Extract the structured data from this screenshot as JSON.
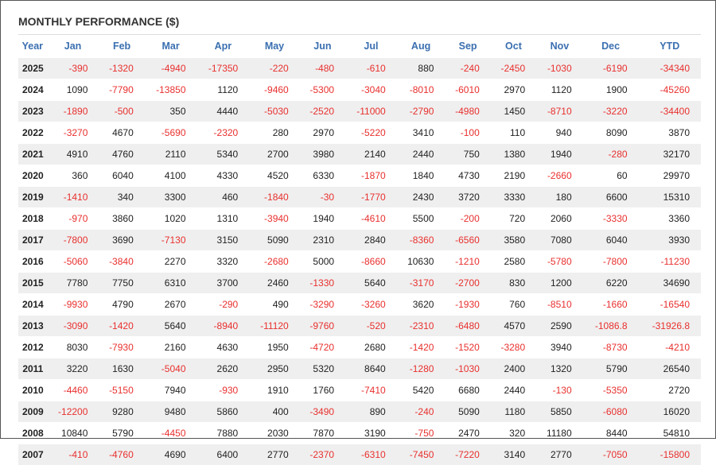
{
  "header": {
    "title": "MONTHLY PERFORMANCE ($)"
  },
  "table": {
    "columns": [
      "Year",
      "Jan",
      "Feb",
      "Mar",
      "Apr",
      "May",
      "Jun",
      "Jul",
      "Aug",
      "Sep",
      "Oct",
      "Nov",
      "Dec",
      "YTD"
    ],
    "rows": [
      [
        "2025",
        "-390",
        "-1320",
        "-4940",
        "-17350",
        "-220",
        "-480",
        "-610",
        "880",
        "-240",
        "-2450",
        "-1030",
        "-6190",
        "-34340"
      ],
      [
        "2024",
        "1090",
        "-7790",
        "-13850",
        "1120",
        "-9460",
        "-5300",
        "-3040",
        "-8010",
        "-6010",
        "2970",
        "1120",
        "1900",
        "-45260"
      ],
      [
        "2023",
        "-1890",
        "-500",
        "350",
        "4440",
        "-5030",
        "-2520",
        "-11000",
        "-2790",
        "-4980",
        "1450",
        "-8710",
        "-3220",
        "-34400"
      ],
      [
        "2022",
        "-3270",
        "4670",
        "-5690",
        "-2320",
        "280",
        "2970",
        "-5220",
        "3410",
        "-100",
        "110",
        "940",
        "8090",
        "3870"
      ],
      [
        "2021",
        "4910",
        "4760",
        "2110",
        "5340",
        "2700",
        "3980",
        "2140",
        "2440",
        "750",
        "1380",
        "1940",
        "-280",
        "32170"
      ],
      [
        "2020",
        "360",
        "6040",
        "4100",
        "4330",
        "4520",
        "6330",
        "-1870",
        "1840",
        "4730",
        "2190",
        "-2660",
        "60",
        "29970"
      ],
      [
        "2019",
        "-1410",
        "340",
        "3300",
        "460",
        "-1840",
        "-30",
        "-1770",
        "2430",
        "3720",
        "3330",
        "180",
        "6600",
        "15310"
      ],
      [
        "2018",
        "-970",
        "3860",
        "1020",
        "1310",
        "-3940",
        "1940",
        "-4610",
        "5500",
        "-200",
        "720",
        "2060",
        "-3330",
        "3360"
      ],
      [
        "2017",
        "-7800",
        "3690",
        "-7130",
        "3150",
        "5090",
        "2310",
        "2840",
        "-8360",
        "-6560",
        "3580",
        "7080",
        "6040",
        "3930"
      ],
      [
        "2016",
        "-5060",
        "-3840",
        "2270",
        "3320",
        "-2680",
        "5000",
        "-8660",
        "10630",
        "-1210",
        "2580",
        "-5780",
        "-7800",
        "-11230"
      ],
      [
        "2015",
        "7780",
        "7750",
        "6310",
        "3700",
        "2460",
        "-1330",
        "5640",
        "-3170",
        "-2700",
        "830",
        "1200",
        "6220",
        "34690"
      ],
      [
        "2014",
        "-9930",
        "4790",
        "2670",
        "-290",
        "490",
        "-3290",
        "-3260",
        "3620",
        "-1930",
        "760",
        "-8510",
        "-1660",
        "-16540"
      ],
      [
        "2013",
        "-3090",
        "-1420",
        "5640",
        "-8940",
        "-11120",
        "-9760",
        "-520",
        "-2310",
        "-6480",
        "4570",
        "2590",
        "-1086.8",
        "-31926.8"
      ],
      [
        "2012",
        "8030",
        "-7930",
        "2160",
        "4630",
        "1950",
        "-4720",
        "2680",
        "-1420",
        "-1520",
        "-3280",
        "3940",
        "-8730",
        "-4210"
      ],
      [
        "2011",
        "3220",
        "1630",
        "-5040",
        "2620",
        "2950",
        "5320",
        "8640",
        "-1280",
        "-1030",
        "2400",
        "1320",
        "5790",
        "26540"
      ],
      [
        "2010",
        "-4460",
        "-5150",
        "7940",
        "-930",
        "1910",
        "1760",
        "-7410",
        "5420",
        "6680",
        "2440",
        "-130",
        "-5350",
        "2720"
      ],
      [
        "2009",
        "-12200",
        "9280",
        "9480",
        "5860",
        "400",
        "-3490",
        "890",
        "-240",
        "5090",
        "1180",
        "5850",
        "-6080",
        "16020"
      ],
      [
        "2008",
        "10840",
        "5790",
        "-4450",
        "7880",
        "2030",
        "7870",
        "3190",
        "-750",
        "2470",
        "320",
        "11180",
        "8440",
        "54810"
      ],
      [
        "2007",
        "-410",
        "-4760",
        "4690",
        "6400",
        "2770",
        "-2370",
        "-6310",
        "-7450",
        "-7220",
        "3140",
        "2770",
        "-7050",
        "-15800"
      ]
    ]
  }
}
